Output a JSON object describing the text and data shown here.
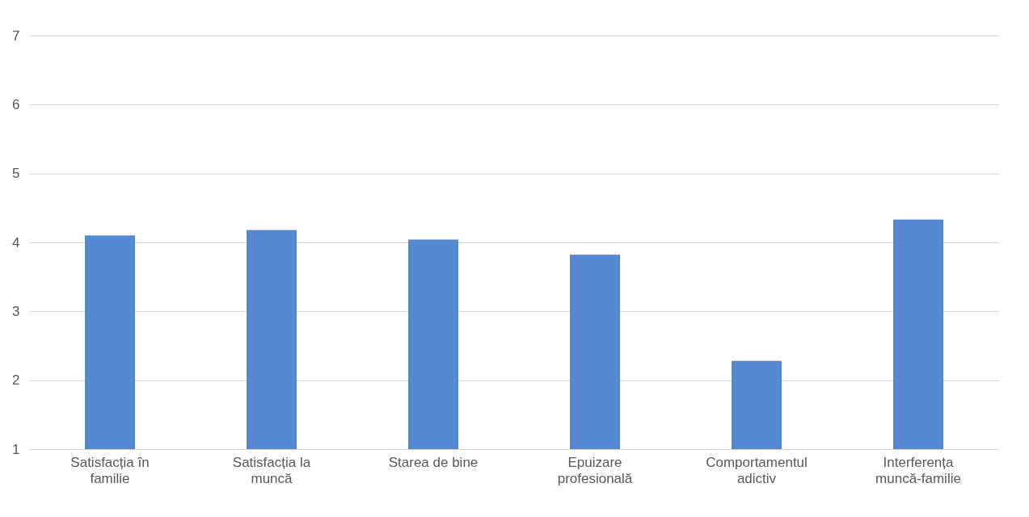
{
  "chart_data": {
    "type": "bar",
    "categories": [
      "Satisfacția în familie",
      "Satisfacția la muncă",
      "Starea de bine",
      "Epuizare profesională",
      "Comportamentul adictiv",
      "Interferența muncă-familie"
    ],
    "values": [
      4.1,
      4.18,
      4.04,
      3.82,
      2.28,
      4.33
    ],
    "color": "#5588d3",
    "ylim": [
      1,
      7
    ],
    "yticks": [
      1,
      2,
      3,
      4,
      5,
      6,
      7
    ],
    "grid": "y"
  }
}
